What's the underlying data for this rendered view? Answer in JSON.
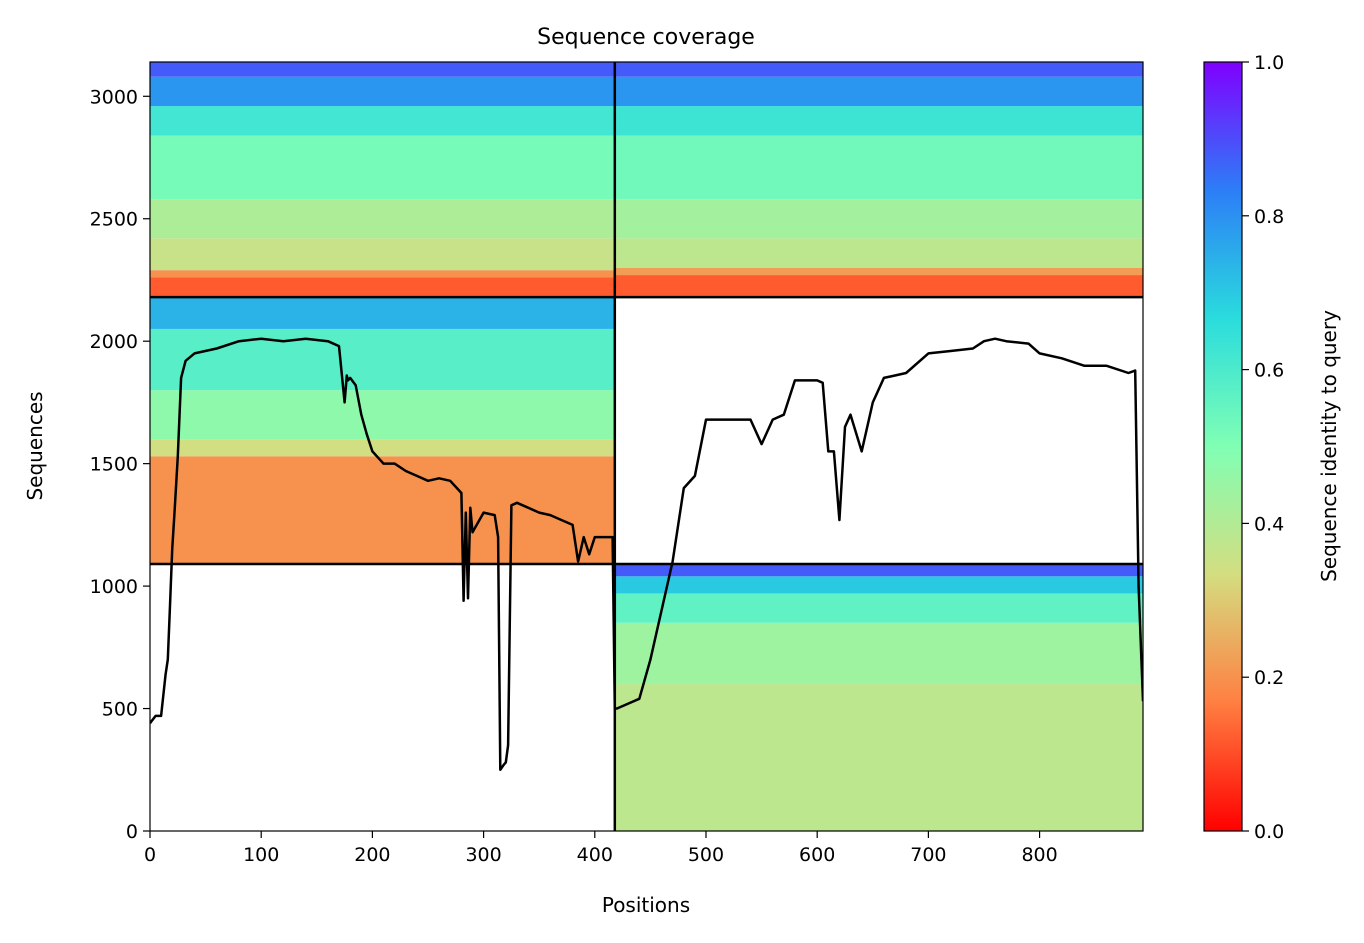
{
  "chart_data": {
    "type": "heatmap",
    "title": "Sequence coverage",
    "xlabel": "Positions",
    "ylabel": "Sequences",
    "xlim": [
      0,
      893
    ],
    "ylim": [
      0,
      3140
    ],
    "xticks": [
      0,
      100,
      200,
      300,
      400,
      500,
      600,
      700,
      800
    ],
    "yticks": [
      0,
      500,
      1000,
      1500,
      2000,
      2500,
      3000
    ],
    "colorbar": {
      "label": "Sequence identity to query",
      "range": [
        0,
        1
      ],
      "ticks": [
        "0.0",
        "0.2",
        "0.4",
        "0.6",
        "0.8",
        "1.0"
      ],
      "colormap": "rainbow_r",
      "stops": [
        "#ff0000",
        "#ff7f41",
        "#d4dd80",
        "#80ffb4",
        "#2adcdd",
        "#2c7ef7",
        "#8000ff"
      ]
    },
    "dividers": {
      "vertical_x": 418,
      "horizontal_y": [
        1090,
        2180
      ]
    },
    "blocks": [
      {
        "name": "top-left",
        "x": [
          0,
          418
        ],
        "y": [
          2180,
          3140
        ],
        "identity_bands": [
          {
            "y": [
              2180,
              2260
            ],
            "identity": 0.12
          },
          {
            "y": [
              2260,
              2290
            ],
            "identity": 0.2
          },
          {
            "y": [
              2290,
              2420
            ],
            "identity": 0.36
          },
          {
            "y": [
              2420,
              2580
            ],
            "identity": 0.41
          },
          {
            "y": [
              2580,
              2840
            ],
            "identity": 0.52
          },
          {
            "y": [
              2840,
              2960
            ],
            "identity": 0.62
          },
          {
            "y": [
              2960,
              3080
            ],
            "identity": 0.79
          },
          {
            "y": [
              3080,
              3140
            ],
            "identity": 0.88
          }
        ]
      },
      {
        "name": "top-right",
        "x": [
          418,
          893
        ],
        "y": [
          2180,
          3140
        ],
        "identity_bands": [
          {
            "y": [
              2180,
              2270
            ],
            "identity": 0.12
          },
          {
            "y": [
              2270,
              2300
            ],
            "identity": 0.22
          },
          {
            "y": [
              2300,
              2420
            ],
            "identity": 0.38
          },
          {
            "y": [
              2420,
              2580
            ],
            "identity": 0.43
          },
          {
            "y": [
              2580,
              2840
            ],
            "identity": 0.53
          },
          {
            "y": [
              2840,
              2960
            ],
            "identity": 0.63
          },
          {
            "y": [
              2960,
              3080
            ],
            "identity": 0.79
          },
          {
            "y": [
              3080,
              3140
            ],
            "identity": 0.88
          }
        ]
      },
      {
        "name": "middle-left",
        "x": [
          0,
          418
        ],
        "y": [
          1090,
          2180
        ],
        "identity_bands": [
          {
            "y": [
              1090,
              1530
            ],
            "identity": 0.2
          },
          {
            "y": [
              1530,
              1600
            ],
            "identity": 0.34
          },
          {
            "y": [
              1600,
              1800
            ],
            "identity": 0.47
          },
          {
            "y": [
              1800,
              2050
            ],
            "identity": 0.58
          },
          {
            "y": [
              2050,
              2180
            ],
            "identity": 0.74
          }
        ]
      },
      {
        "name": "bottom-right",
        "x": [
          418,
          893
        ],
        "y": [
          0,
          1090
        ],
        "identity_bands": [
          {
            "y": [
              0,
              600
            ],
            "identity": 0.38
          },
          {
            "y": [
              600,
              850
            ],
            "identity": 0.44
          },
          {
            "y": [
              850,
              970
            ],
            "identity": 0.56
          },
          {
            "y": [
              970,
              1040
            ],
            "identity": 0.7
          },
          {
            "y": [
              1040,
              1090
            ],
            "identity": 0.88
          }
        ]
      }
    ],
    "coverage_line": {
      "color": "#000000",
      "x": [
        0,
        5,
        10,
        14,
        16,
        18,
        20,
        22,
        25,
        28,
        32,
        40,
        60,
        80,
        100,
        120,
        140,
        160,
        170,
        175,
        177,
        178,
        180,
        185,
        190,
        195,
        200,
        210,
        220,
        230,
        240,
        250,
        260,
        270,
        280,
        282,
        284,
        286,
        288,
        290,
        300,
        310,
        313,
        315,
        318,
        320,
        322,
        325,
        330,
        340,
        350,
        360,
        370,
        380,
        385,
        390,
        395,
        400,
        410,
        416,
        418,
        420,
        430,
        440,
        450,
        460,
        470,
        480,
        490,
        500,
        520,
        540,
        550,
        560,
        570,
        580,
        600,
        605,
        610,
        615,
        620,
        625,
        630,
        640,
        650,
        660,
        670,
        680,
        700,
        720,
        740,
        750,
        760,
        770,
        790,
        800,
        820,
        840,
        860,
        880,
        886,
        889,
        893
      ],
      "y": [
        440,
        470,
        470,
        640,
        700,
        920,
        1150,
        1300,
        1530,
        1850,
        1920,
        1950,
        1970,
        2000,
        2010,
        2000,
        2010,
        2000,
        1980,
        1750,
        1860,
        1840,
        1850,
        1820,
        1700,
        1620,
        1550,
        1500,
        1500,
        1470,
        1450,
        1430,
        1440,
        1430,
        1380,
        940,
        1300,
        950,
        1320,
        1220,
        1300,
        1290,
        1200,
        250,
        270,
        280,
        350,
        1330,
        1340,
        1320,
        1300,
        1290,
        1270,
        1250,
        1100,
        1200,
        1130,
        1200,
        1200,
        1200,
        500,
        500,
        520,
        540,
        700,
        900,
        1100,
        1400,
        1450,
        1680,
        1680,
        1680,
        1580,
        1680,
        1700,
        1840,
        1840,
        1830,
        1550,
        1550,
        1270,
        1650,
        1700,
        1550,
        1750,
        1850,
        1860,
        1870,
        1950,
        1960,
        1970,
        2000,
        2010,
        2000,
        1990,
        1950,
        1930,
        1900,
        1900,
        1870,
        1880,
        1000,
        530
      ]
    }
  }
}
